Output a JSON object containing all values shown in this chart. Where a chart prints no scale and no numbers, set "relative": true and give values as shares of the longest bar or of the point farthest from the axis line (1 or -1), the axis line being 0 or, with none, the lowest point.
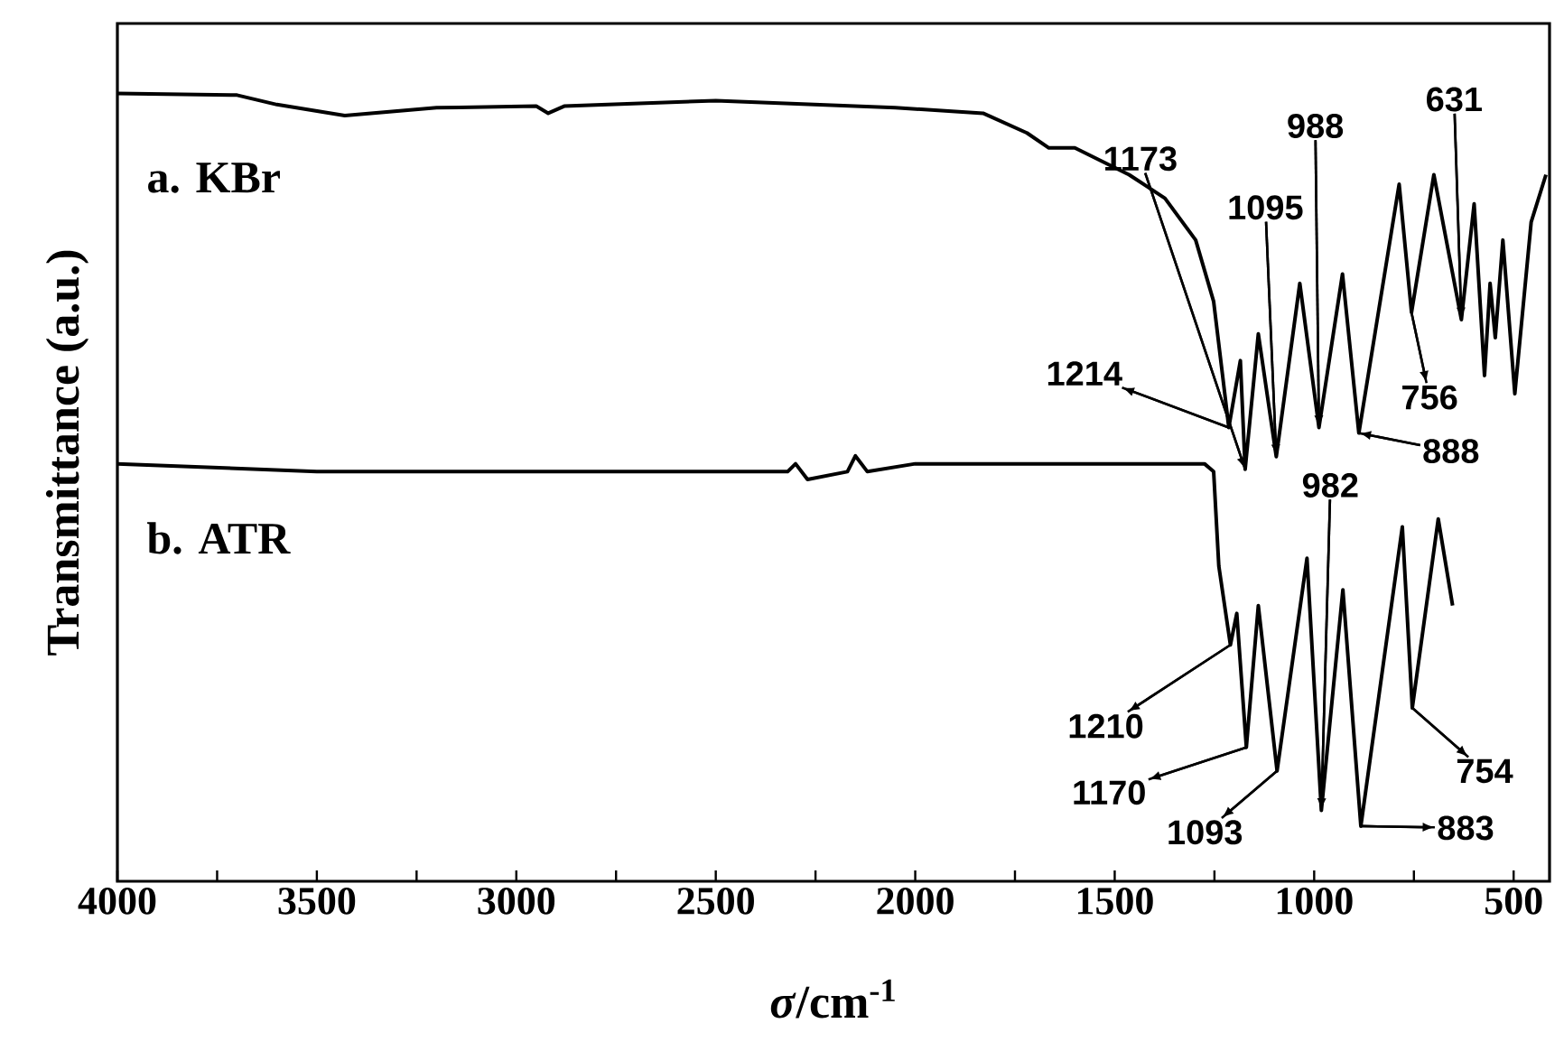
{
  "chart_data": {
    "type": "line",
    "relative": true,
    "xlabel": "*σ*/cm$^{-1}$",
    "ylabel": "Transmittance (a.u.)",
    "xlim": [
      4000,
      410
    ],
    "xticks": [
      4000,
      {
        "value": 3750,
        "label": null
      },
      3500,
      {
        "value": 3250,
        "label": null
      },
      3000,
      {
        "value": 2750,
        "label": null
      },
      2500,
      {
        "value": 2250,
        "label": null
      },
      2000,
      {
        "value": 1750,
        "label": null
      },
      1500,
      {
        "value": 1250,
        "label": null
      },
      1000,
      {
        "value": 750,
        "label": null
      },
      500
    ],
    "series": [
      {
        "name": "a. KBr",
        "color": "#000000",
        "x": [
          4000,
          3700,
          3600,
          3430,
          3200,
          2950,
          2920,
          2880,
          2500,
          2050,
          1830,
          1720,
          1665,
          1600,
          1464,
          1374,
          1297,
          1252,
          1230,
          1214,
          1185,
          1173,
          1140,
          1095,
          1036,
          988,
          929,
          888,
          787,
          756,
          700,
          631,
          599,
          573,
          559,
          546,
          527,
          497,
          456,
          419
        ],
        "values": [
          1.0,
          0.998,
          0.986,
          0.972,
          0.982,
          0.984,
          0.975,
          0.984,
          0.991,
          0.982,
          0.975,
          0.95,
          0.931,
          0.931,
          0.897,
          0.867,
          0.814,
          0.736,
          0.644,
          0.576,
          0.661,
          0.523,
          0.695,
          0.539,
          0.759,
          0.576,
          0.771,
          0.569,
          0.885,
          0.722,
          0.897,
          0.713,
          0.86,
          0.642,
          0.759,
          0.69,
          0.814,
          0.619,
          0.837,
          0.897
        ]
      },
      {
        "name": "b. ATR",
        "color": "#000000",
        "x": [
          4000,
          3500,
          2500,
          2320,
          2300,
          2270,
          2170,
          2150,
          2120,
          2000,
          1500,
          1275,
          1252,
          1239,
          1210,
          1194,
          1170,
          1140,
          1093,
          1018,
          982,
          928,
          883,
          779,
          754,
          689,
          653
        ],
        "values": [
          0.53,
          0.52,
          0.52,
          0.52,
          0.53,
          0.51,
          0.52,
          0.54,
          0.52,
          0.53,
          0.53,
          0.53,
          0.52,
          0.4,
          0.3,
          0.34,
          0.17,
          0.35,
          0.14,
          0.41,
          0.09,
          0.37,
          0.07,
          0.45,
          0.22,
          0.46,
          0.35
        ]
      }
    ],
    "annotations": [
      {
        "text": "1214",
        "x": 1214,
        "y": 0.576
      },
      {
        "text": "1173",
        "x": 1173,
        "y": 0.523
      },
      {
        "text": "1095",
        "x": 1095,
        "y": 0.539
      },
      {
        "text": "988",
        "x": 988,
        "y": 0.576
      },
      {
        "text": "888",
        "x": 888,
        "y": 0.569
      },
      {
        "text": "756",
        "x": 756,
        "y": 0.722
      },
      {
        "text": "631",
        "x": 631,
        "y": 0.713
      },
      {
        "text": "982",
        "x": 982,
        "y": 0.09
      },
      {
        "text": "1210",
        "x": 1210,
        "y": 0.3
      },
      {
        "text": "1170",
        "x": 1170,
        "y": 0.17
      },
      {
        "text": "1093",
        "x": 1093,
        "y": 0.14
      },
      {
        "text": "883",
        "x": 883,
        "y": 0.07
      },
      {
        "text": "754",
        "x": 754,
        "y": 0.22
      }
    ]
  }
}
